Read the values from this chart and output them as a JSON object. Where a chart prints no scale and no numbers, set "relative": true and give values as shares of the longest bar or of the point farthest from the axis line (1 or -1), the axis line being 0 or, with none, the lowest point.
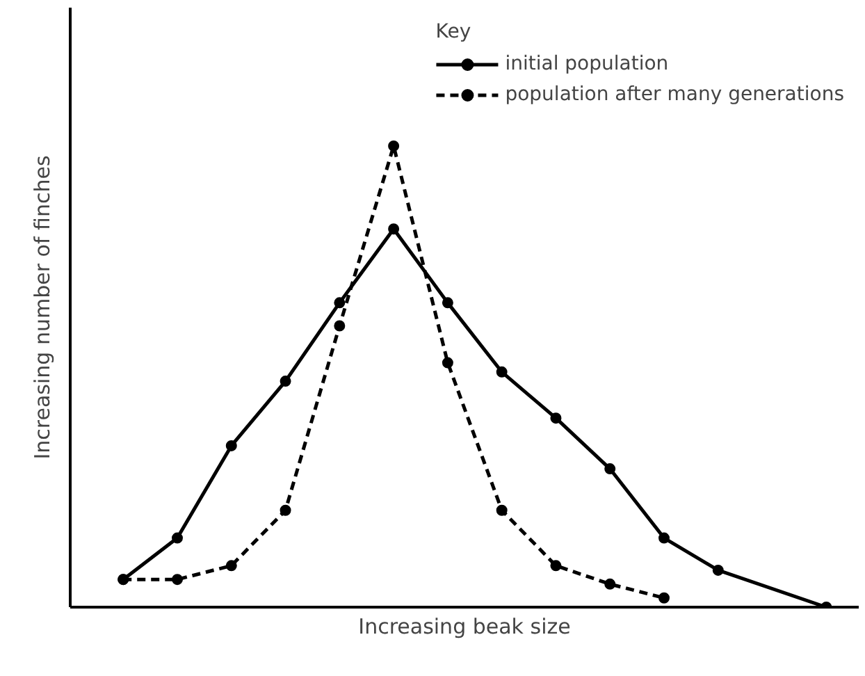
{
  "chart_data": {
    "type": "line",
    "relative": true,
    "xlabel": "Increasing beak size",
    "ylabel": "Increasing number of finches",
    "legend_title": "Key",
    "legend": "top right",
    "marker": "circle",
    "categories": [
      null,
      null,
      null,
      null,
      null,
      null,
      null,
      null,
      null,
      null,
      null,
      null,
      null,
      null
    ],
    "series": [
      {
        "name": "initial population",
        "color": "#000000",
        "line_style": "solid",
        "values": [
          0.06,
          0.15,
          0.35,
          0.49,
          0.66,
          0.82,
          0.66,
          0.51,
          0.41,
          0.3,
          0.15,
          0.08,
          null,
          0
        ]
      },
      {
        "name": "population after many generations",
        "color": "#000000",
        "line_style": "dashed",
        "values": [
          0.06,
          0.06,
          0.09,
          0.21,
          0.61,
          1.0,
          0.53,
          0.21,
          0.09,
          0.05,
          0.02,
          null,
          null,
          null
        ]
      }
    ]
  }
}
